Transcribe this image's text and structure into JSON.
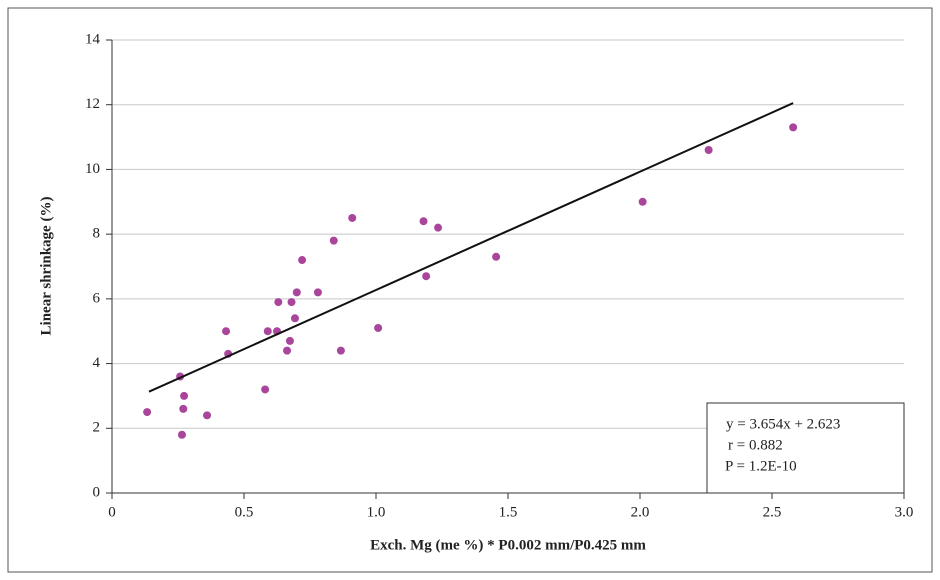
{
  "chart_data": {
    "type": "scatter",
    "x_label": "Exch. Mg (me %) * P0.002 mm/P0.425 mm",
    "y_label": "Linear shrinkage (%)",
    "series": [
      {
        "color": "#a9469c",
        "x": [
          0.133,
          0.258,
          0.273,
          0.27,
          0.265,
          0.36,
          0.432,
          0.44,
          0.58,
          0.59,
          0.63,
          0.625,
          0.663,
          0.674,
          0.68,
          0.693,
          0.7,
          0.72,
          0.78,
          0.84,
          0.867,
          0.91,
          1.008,
          1.18,
          1.19,
          1.235,
          1.455,
          2.01,
          2.26,
          2.58
        ],
        "values": [
          2.5,
          3.6,
          3.0,
          2.6,
          1.8,
          2.4,
          5.0,
          4.3,
          3.2,
          5.0,
          5.9,
          5.0,
          4.4,
          4.7,
          5.9,
          5.4,
          6.2,
          7.2,
          6.2,
          7.8,
          4.4,
          8.5,
          5.1,
          8.4,
          6.7,
          8.2,
          7.3,
          9.0,
          10.6,
          11.3
        ]
      }
    ],
    "trendline": {
      "color": "#111111",
      "x": [
        0.14,
        2.58
      ],
      "values": [
        3.13,
        12.05
      ]
    },
    "annotations": [
      "y = 3.654x + 2.623",
      "r = 0.882",
      "P = 1.2E-10"
    ],
    "xlim": [
      0,
      3
    ],
    "ylim": [
      0,
      14
    ],
    "xticks": [
      0,
      0.5,
      {
        "value": 1,
        "label": "1.0"
      },
      1.5,
      {
        "value": 2,
        "label": "2.0"
      },
      2.5,
      {
        "value": 3,
        "label": "3.0"
      }
    ],
    "yticks": [
      0,
      2,
      4,
      6,
      8,
      10,
      12,
      14
    ],
    "grid": true
  }
}
